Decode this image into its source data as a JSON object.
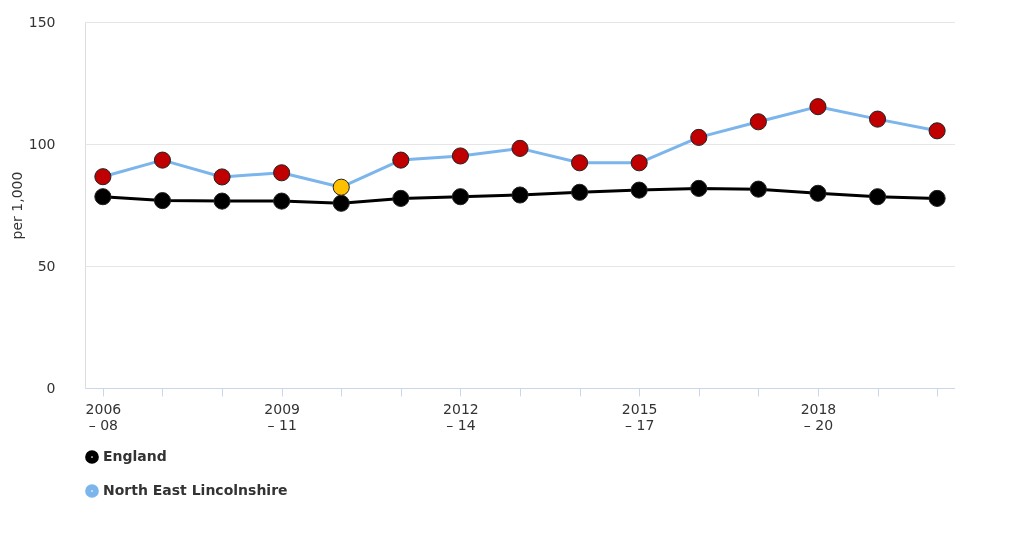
{
  "chart_data": {
    "type": "line",
    "ylabel": "per 1,000",
    "categories": [
      "2006\n– 08",
      null,
      null,
      "2009\n– 11",
      null,
      null,
      "2012\n– 14",
      null,
      null,
      "2015\n– 17",
      null,
      null,
      "2018\n– 20",
      null,
      null
    ],
    "series": [
      {
        "name": "England",
        "color": "#000000",
        "values": [
          78.4,
          76.8,
          76.6,
          76.6,
          75.7,
          77.7,
          78.4,
          79.1,
          80.2,
          81.1,
          81.8,
          81.5,
          79.8,
          78.4,
          77.7
        ]
      },
      {
        "name": "North East Lincolnshire",
        "color": "#7cb5ec",
        "colors": [
          "#c00000",
          "#c00000",
          "#c00000",
          "#c00000",
          "#ffc000",
          "#c00000",
          "#c00000",
          "#c00000",
          "#c00000",
          "#c00000",
          "#c00000",
          "#c00000",
          "#c00000",
          "#c00000",
          "#c00000"
        ],
        "values": [
          86.6,
          93.4,
          86.5,
          88.2,
          82.3,
          93.4,
          95.1,
          98.2,
          92.3,
          92.3,
          102.7,
          109.1,
          115.3,
          110.2,
          105.4
        ]
      }
    ],
    "ylim": [
      0,
      150
    ],
    "yticks": [
      0,
      50,
      100,
      150
    ],
    "grid": "y",
    "legend": "bottom",
    "marker": "circle",
    "line_style": "solid"
  }
}
